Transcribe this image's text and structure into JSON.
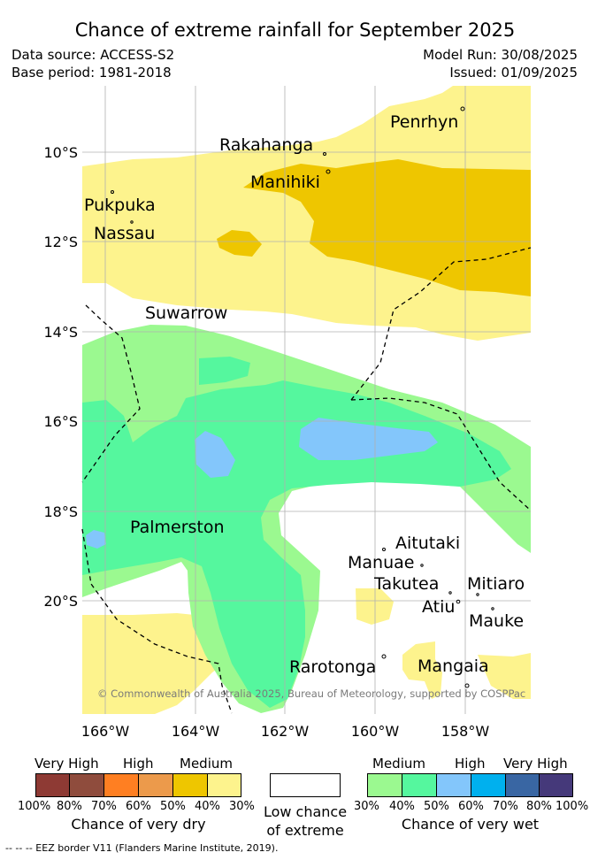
{
  "title": "Chance of extreme rainfall for September 2025",
  "meta": {
    "data_source": "Data source: ACCESS-S2",
    "base_period": "Base period: 1981-2018",
    "model_run": "Model Run: 30/08/2025",
    "issued": "Issued: 01/09/2025"
  },
  "map": {
    "lat_labels": [
      "10°S",
      "12°S",
      "14°S",
      "16°S",
      "18°S",
      "20°S"
    ],
    "lon_labels": [
      "166°W",
      "164°W",
      "162°W",
      "160°W",
      "158°W"
    ],
    "places": [
      "Penrhyn",
      "Rakahanga",
      "Manihiki",
      "Pukpuka",
      "Nassau",
      "Suwarrow",
      "Palmerston",
      "Aitutaki",
      "Manuae",
      "Takutea",
      "Mitiaro",
      "Atiu",
      "Mauke",
      "Rarotonga",
      "Mangaia"
    ],
    "copyright": "© Commonwealth of Australia 2025, Bureau of Meteorology, supported by COSPPac"
  },
  "legend": {
    "dry": {
      "title": "Chance of very dry",
      "categories": [
        "Very High",
        "High",
        "Medium"
      ],
      "ticks": [
        "100%",
        "80%",
        "70%",
        "60%",
        "50%",
        "40%",
        "30%"
      ],
      "colors": [
        "#8e3a34",
        "#8f4c3d",
        "#ff7f22",
        "#ec9a4b",
        "#eec600",
        "#fdf38d"
      ]
    },
    "neutral": {
      "title_line1": "Low chance",
      "title_line2": "of extreme",
      "color": "#ffffff"
    },
    "wet": {
      "title": "Chance of very wet",
      "categories": [
        "Medium",
        "High",
        "Very High"
      ],
      "ticks": [
        "30%",
        "40%",
        "50%",
        "60%",
        "70%",
        "80%",
        "100%"
      ],
      "colors": [
        "#9bf990",
        "#55f79e",
        "#83c6fb",
        "#00b0ee",
        "#3966a3",
        "#45397a"
      ]
    }
  },
  "footnote": "--  --  -- EEZ border V11 (Flanders Marine Institute, 2019)."
}
